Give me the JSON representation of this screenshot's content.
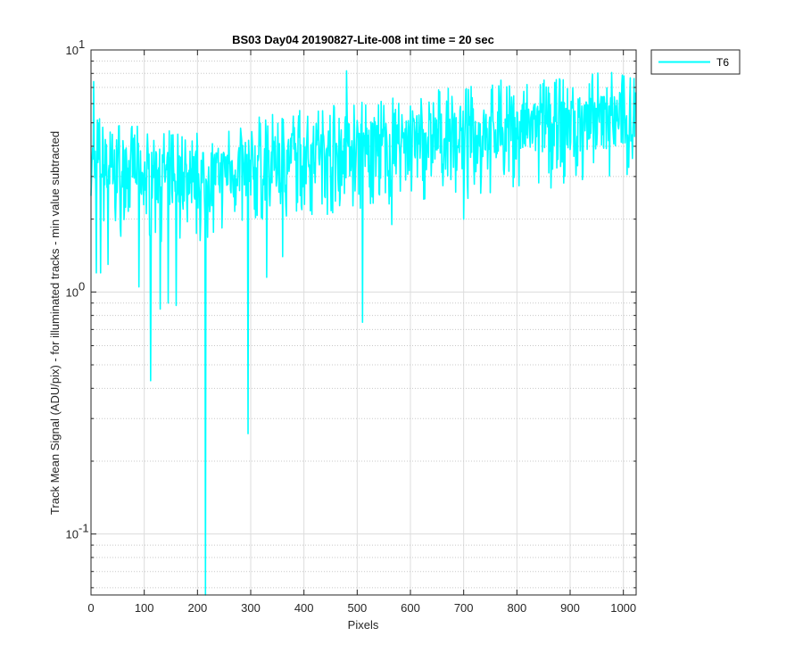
{
  "chart_data": {
    "type": "line",
    "title": "BS03 Day04 20190827-Lite-008 int time = 20 sec",
    "xlabel": "Pixels",
    "ylabel": "Track Mean Signal (ADU/pix) - for illuminated tracks - min value subtracted",
    "xlim": [
      0,
      1024
    ],
    "ylim": [
      0.056,
      10
    ],
    "yscale": "log",
    "grid": true,
    "legend_position": "outside-top-right",
    "xticks": [
      "0",
      "100",
      "200",
      "300",
      "400",
      "500",
      "600",
      "700",
      "800",
      "900",
      "1000"
    ],
    "xtick_values": [
      0,
      100,
      200,
      300,
      400,
      500,
      600,
      700,
      800,
      900,
      1000
    ],
    "yticks": [
      {
        "value": 0.1,
        "base": "10",
        "exp": "-1"
      },
      {
        "value": 1,
        "base": "10",
        "exp": "0"
      },
      {
        "value": 10,
        "base": "10",
        "exp": "1"
      }
    ],
    "series": [
      {
        "name": "T6",
        "color": "#00ffff",
        "trend_x": [
          0,
          50,
          100,
          150,
          200,
          250,
          300,
          350,
          400,
          450,
          500,
          550,
          600,
          650,
          700,
          750,
          800,
          850,
          900,
          950,
          1000,
          1023
        ],
        "trend_y": [
          3.4,
          3.1,
          3.0,
          2.9,
          2.9,
          3.1,
          3.3,
          3.4,
          3.6,
          3.8,
          3.9,
          3.9,
          4.1,
          4.3,
          4.4,
          4.5,
          4.6,
          4.8,
          4.9,
          5.1,
          5.2,
          5.4
        ],
        "spread_max": 6.6,
        "outliers": [
          {
            "x": 10,
            "y": 1.2
          },
          {
            "x": 18,
            "y": 1.2
          },
          {
            "x": 32,
            "y": 1.3
          },
          {
            "x": 5,
            "y": 7.4
          },
          {
            "x": 90,
            "y": 1.05
          },
          {
            "x": 112,
            "y": 0.43
          },
          {
            "x": 130,
            "y": 0.85
          },
          {
            "x": 145,
            "y": 0.9
          },
          {
            "x": 160,
            "y": 0.88
          },
          {
            "x": 215,
            "y": 0.056
          },
          {
            "x": 295,
            "y": 0.26
          },
          {
            "x": 330,
            "y": 1.15
          },
          {
            "x": 360,
            "y": 1.4
          },
          {
            "x": 480,
            "y": 8.2
          },
          {
            "x": 510,
            "y": 0.75
          },
          {
            "x": 565,
            "y": 1.9
          },
          {
            "x": 700,
            "y": 2.0
          },
          {
            "x": 770,
            "y": 7.5
          },
          {
            "x": 880,
            "y": 7.6
          }
        ]
      }
    ]
  }
}
